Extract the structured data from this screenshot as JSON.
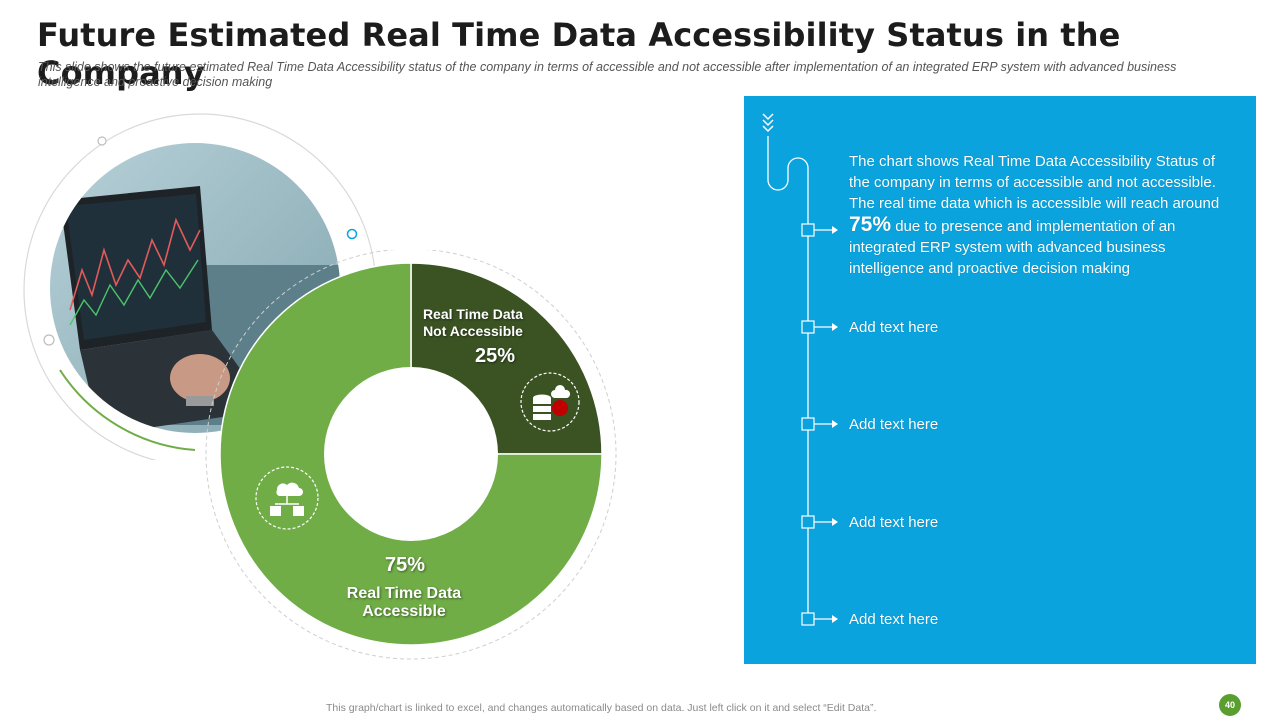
{
  "header": {
    "title": "Future Estimated Real Time Data Accessibility Status in the Company",
    "subtitle": "This slide shows the future estimated Real Time Data Accessibility status of the company in terms of accessible and not accessible after implementation of an integrated ERP system with advanced business intelligence and proactive decision making"
  },
  "chart_data": {
    "type": "pie",
    "variant": "donut",
    "categories": [
      "Real Time Data Not Accessible",
      "Real Time Data Accessible"
    ],
    "values": [
      25,
      75
    ],
    "value_labels": [
      "25%",
      "75%"
    ],
    "label_lines": [
      [
        "Real Time Data",
        "Not Accessible"
      ],
      [
        "Real Time Data",
        "Accessible"
      ]
    ],
    "colors": [
      "#3b5323",
      "#70ad47"
    ],
    "start": "top"
  },
  "panel": {
    "description_before": "The chart shows Real Time Data Accessibility Status of the company in terms of accessible and not accessible. The real time data which is accessible will reach around",
    "highlight": "75%",
    "description_after": "due to presence and implementation of an integrated ERP system with advanced business intelligence and proactive decision making",
    "items": [
      "Add text here",
      "Add text here",
      "Add text here",
      "Add text here"
    ],
    "color": "#0aa3dd"
  },
  "footer": {
    "note": "This graph/chart is linked to excel, and changes automatically based on data. Just left click on it and select “Edit Data”.",
    "page_number": "40"
  },
  "icons": [
    "laptop-photo",
    "database-cloud-icon",
    "cloud-network-icon",
    "chevron-down-icon"
  ]
}
